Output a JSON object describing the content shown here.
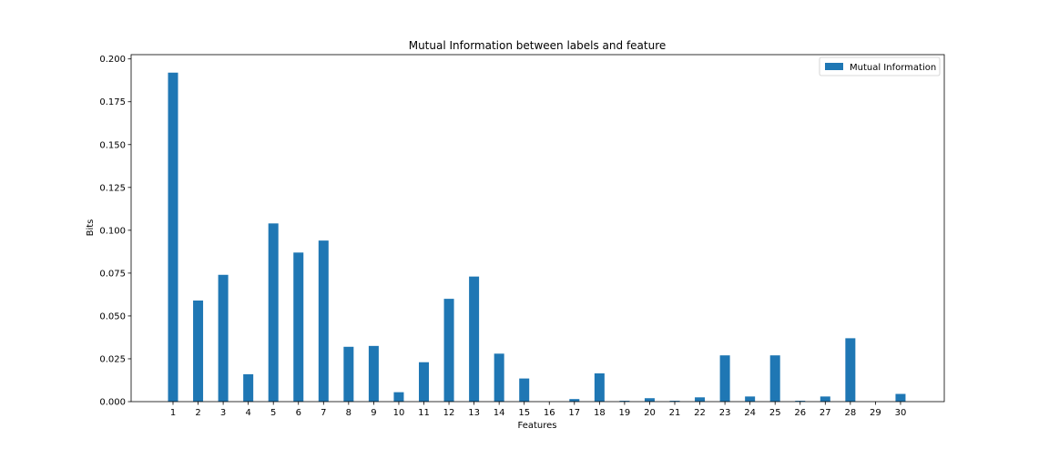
{
  "chart_data": {
    "type": "bar",
    "title": "Mutual Information between labels and feature",
    "xlabel": "Features",
    "ylabel": "Bits",
    "ylim": [
      0,
      0.2025
    ],
    "yticks": [
      0.0,
      0.025,
      0.05,
      0.075,
      0.1,
      0.125,
      0.15,
      0.175,
      0.2
    ],
    "ytick_labels": [
      "0.000",
      "0.025",
      "0.050",
      "0.075",
      "0.100",
      "0.125",
      "0.150",
      "0.175",
      "0.200"
    ],
    "categories": [
      "1",
      "2",
      "3",
      "4",
      "5",
      "6",
      "7",
      "8",
      "9",
      "10",
      "11",
      "12",
      "13",
      "14",
      "15",
      "16",
      "17",
      "18",
      "19",
      "20",
      "21",
      "22",
      "23",
      "24",
      "25",
      "26",
      "27",
      "28",
      "29",
      "30"
    ],
    "series": [
      {
        "name": "Mutual Information",
        "color": "#1f77b4",
        "values": [
          0.192,
          0.059,
          0.074,
          0.016,
          0.104,
          0.087,
          0.094,
          0.032,
          0.0325,
          0.0055,
          0.023,
          0.06,
          0.073,
          0.028,
          0.0135,
          0.0,
          0.0015,
          0.0165,
          0.0005,
          0.002,
          0.0005,
          0.0025,
          0.027,
          0.003,
          0.027,
          0.0005,
          0.003,
          0.037,
          0.0,
          0.0045
        ]
      }
    ],
    "legend": {
      "position": "top-right"
    },
    "grid": false
  }
}
